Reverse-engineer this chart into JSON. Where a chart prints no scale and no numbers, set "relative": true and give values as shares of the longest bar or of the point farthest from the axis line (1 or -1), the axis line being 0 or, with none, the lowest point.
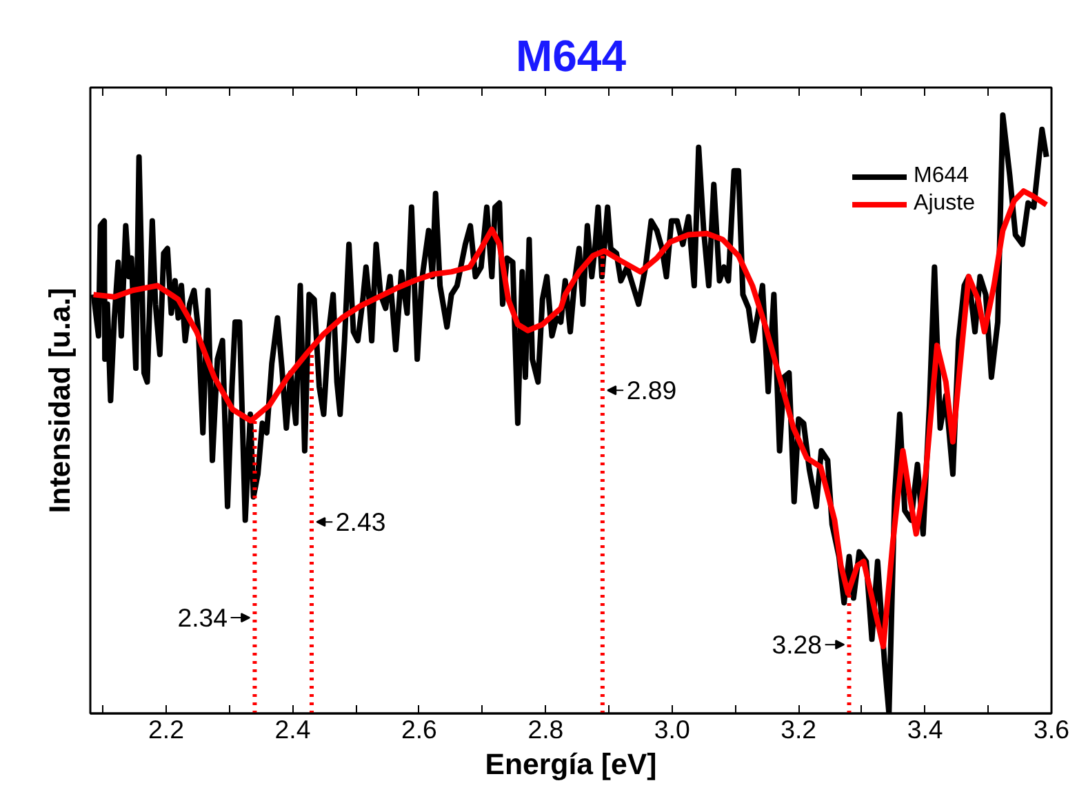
{
  "chart_data": {
    "type": "line",
    "title": "M644",
    "xlabel": "Energía [eV]",
    "ylabel": "Intensidad [u.a.]",
    "relative": true,
    "xlim": [
      2.08,
      3.6
    ],
    "xticks": [
      {
        "value": 2.1,
        "label": null
      },
      2.2,
      {
        "value": 2.3,
        "label": null
      },
      2.4,
      {
        "value": 2.5,
        "label": null
      },
      2.6,
      {
        "value": 2.7,
        "label": null
      },
      2.8,
      {
        "value": 2.9,
        "label": null
      },
      {
        "value": 3.0,
        "label": "3.0"
      },
      {
        "value": 3.1,
        "label": null
      },
      3.2,
      {
        "value": 3.3,
        "label": null
      },
      3.4,
      {
        "value": 3.5,
        "label": null
      },
      3.6
    ],
    "grid": false,
    "legend": "top right",
    "line_style": "solid",
    "marker": "none",
    "series": [
      {
        "name": "M644",
        "color": "#000000",
        "x": [
          2.085,
          2.093,
          2.096,
          2.102,
          2.103,
          2.107,
          2.112,
          2.118,
          2.124,
          2.129,
          2.136,
          2.141,
          2.145,
          2.152,
          2.157,
          2.165,
          2.17,
          2.178,
          2.183,
          2.19,
          2.196,
          2.202,
          2.208,
          2.214,
          2.219,
          2.224,
          2.23,
          2.237,
          2.244,
          2.251,
          2.258,
          2.266,
          2.273,
          2.281,
          2.289,
          2.297,
          2.304,
          2.309,
          2.316,
          2.325,
          2.333,
          2.338,
          2.345,
          2.352,
          2.359,
          2.367,
          2.376,
          2.383,
          2.39,
          2.397,
          2.405,
          2.412,
          2.419,
          2.426,
          2.434,
          2.442,
          2.449,
          2.457,
          2.464,
          2.47,
          2.475,
          2.482,
          2.489,
          2.496,
          2.503,
          2.511,
          2.516,
          2.521,
          2.525,
          2.532,
          2.539,
          2.547,
          2.554,
          2.563,
          2.572,
          2.581,
          2.588,
          2.597,
          2.604,
          2.615,
          2.621,
          2.626,
          2.633,
          2.644,
          2.651,
          2.66,
          2.673,
          2.681,
          2.689,
          2.698,
          2.707,
          2.715,
          2.72,
          2.727,
          2.732,
          2.739,
          2.748,
          2.756,
          2.763,
          2.768,
          2.774,
          2.779,
          2.788,
          2.795,
          2.802,
          2.81,
          2.817,
          2.824,
          2.831,
          2.839,
          2.846,
          2.853,
          2.859,
          2.866,
          2.873,
          2.878,
          2.883,
          2.889,
          2.898,
          2.903,
          2.912,
          2.919,
          2.929,
          2.938,
          2.947,
          2.958,
          2.967,
          2.976,
          2.984,
          2.991,
          2.999,
          3.008,
          3.017,
          3.026,
          3.035,
          3.042,
          3.05,
          3.058,
          3.066,
          3.075,
          3.082,
          3.089,
          3.098,
          3.105,
          3.112,
          3.121,
          3.128,
          3.136,
          3.143,
          3.152,
          3.161,
          3.17,
          3.177,
          3.185,
          3.193,
          3.2,
          3.208,
          3.217,
          3.228,
          3.236,
          3.246,
          3.253,
          3.264,
          3.272,
          3.28,
          3.287,
          3.296,
          3.307,
          3.316,
          3.325,
          3.336,
          3.343,
          3.352,
          3.36,
          3.368,
          3.378,
          3.388,
          3.397,
          3.407,
          3.415,
          3.424,
          3.433,
          3.444,
          3.453,
          3.462,
          3.469,
          3.479,
          3.487,
          3.496,
          3.505,
          3.515,
          3.523,
          3.534,
          3.543,
          3.554,
          3.563,
          3.572,
          3.585,
          3.592
        ],
        "values": [
          0.7,
          0.631,
          0.815,
          0.823,
          0.592,
          0.684,
          0.523,
          0.661,
          0.754,
          0.631,
          0.815,
          0.73,
          0.761,
          0.577,
          0.93,
          0.569,
          0.554,
          0.823,
          0.684,
          0.6,
          0.769,
          0.777,
          0.669,
          0.723,
          0.661,
          0.715,
          0.623,
          0.684,
          0.707,
          0.638,
          0.469,
          0.707,
          0.423,
          0.592,
          0.623,
          0.346,
          0.546,
          0.654,
          0.654,
          0.323,
          0.5,
          0.362,
          0.4,
          0.485,
          0.469,
          0.585,
          0.661,
          0.577,
          0.477,
          0.569,
          0.485,
          0.715,
          0.439,
          0.7,
          0.692,
          0.546,
          0.5,
          0.638,
          0.7,
          0.554,
          0.5,
          0.623,
          0.784,
          0.638,
          0.623,
          0.692,
          0.746,
          0.692,
          0.623,
          0.784,
          0.7,
          0.677,
          0.73,
          0.608,
          0.738,
          0.669,
          0.846,
          0.592,
          0.723,
          0.807,
          0.73,
          0.869,
          0.715,
          0.646,
          0.7,
          0.715,
          0.784,
          0.815,
          0.73,
          0.746,
          0.846,
          0.73,
          0.846,
          0.853,
          0.684,
          0.761,
          0.754,
          0.485,
          0.738,
          0.562,
          0.792,
          0.592,
          0.554,
          0.692,
          0.73,
          0.631,
          0.661,
          0.654,
          0.723,
          0.638,
          0.723,
          0.777,
          0.684,
          0.815,
          0.73,
          0.777,
          0.846,
          0.73,
          0.846,
          0.777,
          0.769,
          0.723,
          0.746,
          0.715,
          0.684,
          0.746,
          0.823,
          0.807,
          0.777,
          0.73,
          0.823,
          0.823,
          0.784,
          0.83,
          0.715,
          0.946,
          0.807,
          0.715,
          0.884,
          0.723,
          0.746,
          0.723,
          0.907,
          0.907,
          0.7,
          0.677,
          0.623,
          0.669,
          0.715,
          0.538,
          0.7,
          0.439,
          0.562,
          0.569,
          0.354,
          0.492,
          0.485,
          0.408,
          0.346,
          0.439,
          0.423,
          0.316,
          0.262,
          0.185,
          0.262,
          0.193,
          0.27,
          0.254,
          0.124,
          0.254,
          0.085,
          0.0,
          0.362,
          0.5,
          0.339,
          0.323,
          0.416,
          0.3,
          0.515,
          0.746,
          0.477,
          0.531,
          0.4,
          0.623,
          0.715,
          0.73,
          0.638,
          0.73,
          0.7,
          0.562,
          0.654,
          1.0,
          0.899,
          0.8,
          0.784,
          0.853,
          0.846,
          0.976,
          0.93
        ]
      },
      {
        "name": "Ajuste",
        "color": "#ff0000",
        "x": [
          2.085,
          2.118,
          2.147,
          2.186,
          2.219,
          2.248,
          2.276,
          2.305,
          2.334,
          2.363,
          2.392,
          2.421,
          2.449,
          2.478,
          2.507,
          2.536,
          2.565,
          2.594,
          2.622,
          2.651,
          2.68,
          2.698,
          2.715,
          2.727,
          2.741,
          2.756,
          2.772,
          2.795,
          2.824,
          2.831,
          2.853,
          2.875,
          2.893,
          2.918,
          2.95,
          2.976,
          2.997,
          3.026,
          3.055,
          3.08,
          3.105,
          3.127,
          3.148,
          3.17,
          3.192,
          3.213,
          3.235,
          3.257,
          3.267,
          3.278,
          3.293,
          3.303,
          3.318,
          3.334,
          3.349,
          3.365,
          3.376,
          3.386,
          3.401,
          3.419,
          3.433,
          3.444,
          3.455,
          3.469,
          3.484,
          3.494,
          3.509,
          3.523,
          3.541,
          3.556,
          3.57,
          3.592
        ],
        "values": [
          0.7,
          0.696,
          0.707,
          0.715,
          0.692,
          0.638,
          0.562,
          0.508,
          0.489,
          0.515,
          0.562,
          0.6,
          0.634,
          0.661,
          0.681,
          0.696,
          0.711,
          0.724,
          0.734,
          0.738,
          0.746,
          0.777,
          0.809,
          0.784,
          0.692,
          0.65,
          0.64,
          0.65,
          0.677,
          0.7,
          0.738,
          0.765,
          0.773,
          0.757,
          0.738,
          0.761,
          0.788,
          0.8,
          0.802,
          0.792,
          0.765,
          0.715,
          0.646,
          0.562,
          0.477,
          0.427,
          0.412,
          0.323,
          0.247,
          0.201,
          0.247,
          0.254,
          0.185,
          0.112,
          0.285,
          0.439,
          0.362,
          0.3,
          0.4,
          0.615,
          0.554,
          0.454,
          0.577,
          0.73,
          0.692,
          0.638,
          0.715,
          0.807,
          0.857,
          0.873,
          0.865,
          0.85
        ]
      }
    ],
    "ref_lines": [
      {
        "axis": "x",
        "value": 2.34,
        "label": "2.34",
        "color": "#ff0000",
        "line_style": "dotted"
      },
      {
        "axis": "x",
        "value": 2.43,
        "label": "2.43",
        "color": "#ff0000",
        "line_style": "dotted"
      },
      {
        "axis": "x",
        "value": 2.89,
        "label": "2.89",
        "color": "#ff0000",
        "line_style": "dotted"
      },
      {
        "axis": "x",
        "value": 3.28,
        "label": "3.28",
        "color": "#ff0000",
        "line_style": "dotted"
      }
    ]
  }
}
